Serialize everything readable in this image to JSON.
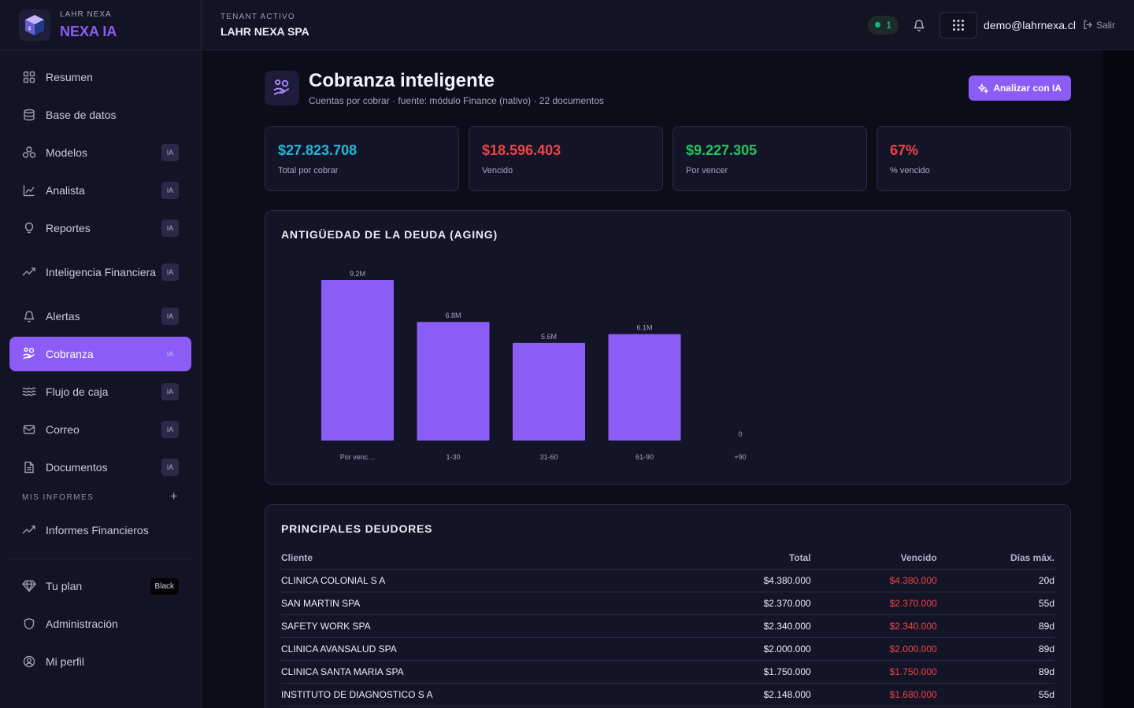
{
  "brand": {
    "sub": "LAHR NEXA",
    "name": "NEXA IA"
  },
  "sidebar": {
    "items": [
      {
        "label": "Resumen",
        "icon": "grid-icon",
        "badge": ""
      },
      {
        "label": "Base de datos",
        "icon": "database-icon",
        "badge": ""
      },
      {
        "label": "Modelos",
        "icon": "models-icon",
        "badge": "IA"
      },
      {
        "label": "Analista",
        "icon": "line-chart-icon",
        "badge": "IA"
      },
      {
        "label": "Reportes",
        "icon": "lightbulb-icon",
        "badge": "IA"
      },
      {
        "label": "Inteligencia Financiera",
        "icon": "trending-up-icon",
        "badge": "IA"
      },
      {
        "label": "Alertas",
        "icon": "bell-icon",
        "badge": "IA"
      },
      {
        "label": "Cobranza",
        "icon": "hand-coins-icon",
        "badge": "IA",
        "active": true
      },
      {
        "label": "Flujo de caja",
        "icon": "waves-icon",
        "badge": "IA"
      },
      {
        "label": "Correo",
        "icon": "mail-icon",
        "badge": "IA"
      },
      {
        "label": "Documentos",
        "icon": "document-icon",
        "badge": "IA"
      }
    ],
    "section_title": "MIS INFORMES",
    "reports": [
      {
        "label": "Informes Financieros"
      }
    ],
    "bottom": [
      {
        "label": "Tu plan",
        "badge": "Black"
      },
      {
        "label": "Administración"
      },
      {
        "label": "Mi perfil"
      }
    ]
  },
  "topbar": {
    "tenant_label": "TENANT ACTIVO",
    "tenant_name": "LAHR NEXA SPA",
    "status_count": "1",
    "user_email": "demo@lahrnexa.cl",
    "logout": "Salir"
  },
  "page": {
    "title": "Cobranza inteligente",
    "subtitle": "Cuentas por cobrar · fuente: módulo Finance (nativo) · 22 documentos",
    "analyze_button": "Analizar con IA"
  },
  "kpis": [
    {
      "value": "$27.823.708",
      "label": "Total por cobrar",
      "color": "#22b8d4"
    },
    {
      "value": "$18.596.403",
      "label": "Vencido",
      "color": "#ef4444"
    },
    {
      "value": "$9.227.305",
      "label": "Por vencer",
      "color": "#22c55e"
    },
    {
      "value": "67%",
      "label": "% vencido",
      "color": "#ef4444"
    }
  ],
  "chart_card_title": "ANTIGÜEDAD DE LA DEUDA (AGING)",
  "chart_data": {
    "type": "bar",
    "categories": [
      "Por venc…",
      "1-30",
      "31-60",
      "61-90",
      "+90"
    ],
    "values": [
      9.2,
      6.8,
      5.6,
      6.1,
      0
    ],
    "value_labels": [
      "9.2M",
      "6.8M",
      "5.6M",
      "6.1M",
      "0"
    ],
    "ylim": [
      0,
      9.2
    ],
    "bar_color": "#8b5cf6",
    "grid": false
  },
  "table": {
    "title": "PRINCIPALES DEUDORES",
    "headers": [
      "Cliente",
      "Total",
      "Vencido",
      "Días máx."
    ],
    "rows": [
      [
        "CLINICA COLONIAL S A",
        "$4.380.000",
        "$4.380.000",
        "20d"
      ],
      [
        "SAN MARTIN SPA",
        "$2.370.000",
        "$2.370.000",
        "55d"
      ],
      [
        "SAFETY WORK SPA",
        "$2.340.000",
        "$2.340.000",
        "89d"
      ],
      [
        "CLINICA AVANSALUD SPA",
        "$2.000.000",
        "$2.000.000",
        "89d"
      ],
      [
        "CLINICA SANTA MARIA SPA",
        "$1.750.000",
        "$1.750.000",
        "89d"
      ],
      [
        "INSTITUTO DE DIAGNOSTICO S A",
        "$2.148.000",
        "$1.680.000",
        "55d"
      ]
    ]
  }
}
